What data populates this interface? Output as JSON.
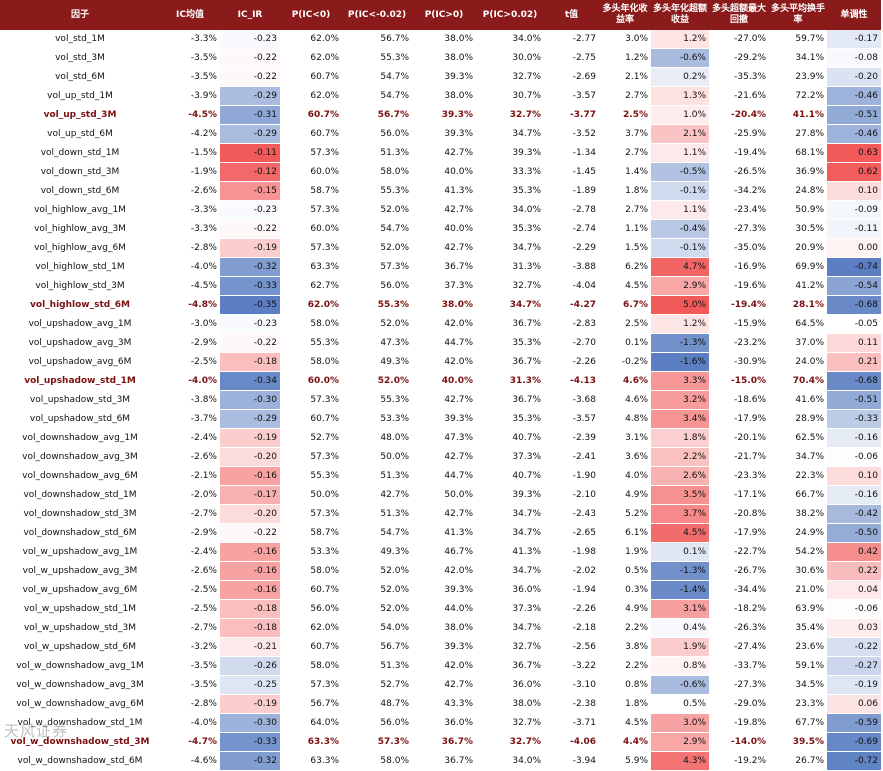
{
  "header": [
    "因子",
    "IC均值",
    "IC_IR",
    "P(IC<0)",
    "P(IC<-0.02)",
    "P(IC>0)",
    "P(IC>0.02)",
    "t值",
    "多头年化收益率",
    "多头年化超额收益",
    "多头超额最大回撤",
    "多头平均换手率",
    "单调性"
  ],
  "watermark": "天风证券",
  "colors": {
    "header_bg": "#8b1a1a",
    "highlight_text": "#7a1010",
    "neg": "#5b7fc2",
    "pos": "#f25a5a"
  },
  "rows": [
    {
      "name": "vol_std_1M",
      "ic": "-3.3%",
      "ir": "-0.23",
      "p1": "62.0%",
      "p2": "56.7%",
      "p3": "38.0%",
      "p4": "34.0%",
      "t": "-2.77",
      "ann": "3.0%",
      "ex": "1.2%",
      "mdd": "-27.0%",
      "turn": "59.7%",
      "mono": "-0.17",
      "hl": false
    },
    {
      "name": "vol_std_3M",
      "ic": "-3.5%",
      "ir": "-0.22",
      "p1": "62.0%",
      "p2": "55.3%",
      "p3": "38.0%",
      "p4": "30.0%",
      "t": "-2.75",
      "ann": "1.2%",
      "ex": "-0.6%",
      "mdd": "-29.2%",
      "turn": "34.1%",
      "mono": "-0.08",
      "hl": false
    },
    {
      "name": "vol_std_6M",
      "ic": "-3.5%",
      "ir": "-0.22",
      "p1": "60.7%",
      "p2": "54.7%",
      "p3": "39.3%",
      "p4": "32.7%",
      "t": "-2.69",
      "ann": "2.1%",
      "ex": "0.2%",
      "mdd": "-35.3%",
      "turn": "23.9%",
      "mono": "-0.20",
      "hl": false
    },
    {
      "name": "vol_up_std_1M",
      "ic": "-3.9%",
      "ir": "-0.29",
      "p1": "62.0%",
      "p2": "54.7%",
      "p3": "38.0%",
      "p4": "30.7%",
      "t": "-3.57",
      "ann": "2.7%",
      "ex": "1.3%",
      "mdd": "-21.6%",
      "turn": "72.2%",
      "mono": "-0.46",
      "hl": false
    },
    {
      "name": "vol_up_std_3M",
      "ic": "-4.5%",
      "ir": "-0.31",
      "p1": "60.7%",
      "p2": "56.7%",
      "p3": "39.3%",
      "p4": "32.7%",
      "t": "-3.77",
      "ann": "2.5%",
      "ex": "1.0%",
      "mdd": "-20.4%",
      "turn": "41.1%",
      "mono": "-0.51",
      "hl": true
    },
    {
      "name": "vol_up_std_6M",
      "ic": "-4.2%",
      "ir": "-0.29",
      "p1": "60.7%",
      "p2": "56.0%",
      "p3": "39.3%",
      "p4": "34.7%",
      "t": "-3.52",
      "ann": "3.7%",
      "ex": "2.1%",
      "mdd": "-25.9%",
      "turn": "27.8%",
      "mono": "-0.46",
      "hl": false
    },
    {
      "name": "vol_down_std_1M",
      "ic": "-1.5%",
      "ir": "-0.11",
      "p1": "57.3%",
      "p2": "51.3%",
      "p3": "42.7%",
      "p4": "39.3%",
      "t": "-1.34",
      "ann": "2.7%",
      "ex": "1.1%",
      "mdd": "-19.4%",
      "turn": "68.1%",
      "mono": "0.63",
      "hl": false
    },
    {
      "name": "vol_down_std_3M",
      "ic": "-1.9%",
      "ir": "-0.12",
      "p1": "60.0%",
      "p2": "58.0%",
      "p3": "40.0%",
      "p4": "33.3%",
      "t": "-1.45",
      "ann": "1.4%",
      "ex": "-0.5%",
      "mdd": "-26.5%",
      "turn": "36.9%",
      "mono": "0.62",
      "hl": false
    },
    {
      "name": "vol_down_std_6M",
      "ic": "-2.6%",
      "ir": "-0.15",
      "p1": "58.7%",
      "p2": "55.3%",
      "p3": "41.3%",
      "p4": "35.3%",
      "t": "-1.89",
      "ann": "1.8%",
      "ex": "-0.1%",
      "mdd": "-34.2%",
      "turn": "24.8%",
      "mono": "0.10",
      "hl": false
    },
    {
      "name": "vol_highlow_avg_1M",
      "ic": "-3.3%",
      "ir": "-0.23",
      "p1": "57.3%",
      "p2": "52.0%",
      "p3": "42.7%",
      "p4": "34.0%",
      "t": "-2.78",
      "ann": "2.7%",
      "ex": "1.1%",
      "mdd": "-23.4%",
      "turn": "50.9%",
      "mono": "-0.09",
      "hl": false
    },
    {
      "name": "vol_highlow_avg_3M",
      "ic": "-3.3%",
      "ir": "-0.22",
      "p1": "60.0%",
      "p2": "54.7%",
      "p3": "40.0%",
      "p4": "35.3%",
      "t": "-2.74",
      "ann": "1.1%",
      "ex": "-0.4%",
      "mdd": "-27.3%",
      "turn": "30.5%",
      "mono": "-0.11",
      "hl": false
    },
    {
      "name": "vol_highlow_avg_6M",
      "ic": "-2.8%",
      "ir": "-0.19",
      "p1": "57.3%",
      "p2": "52.0%",
      "p3": "42.7%",
      "p4": "34.7%",
      "t": "-2.29",
      "ann": "1.5%",
      "ex": "-0.1%",
      "mdd": "-35.0%",
      "turn": "20.9%",
      "mono": "0.00",
      "hl": false
    },
    {
      "name": "vol_highlow_std_1M",
      "ic": "-4.0%",
      "ir": "-0.32",
      "p1": "63.3%",
      "p2": "57.3%",
      "p3": "36.7%",
      "p4": "31.3%",
      "t": "-3.88",
      "ann": "6.2%",
      "ex": "4.7%",
      "mdd": "-16.9%",
      "turn": "69.9%",
      "mono": "-0.74",
      "hl": false
    },
    {
      "name": "vol_highlow_std_3M",
      "ic": "-4.5%",
      "ir": "-0.33",
      "p1": "62.7%",
      "p2": "56.0%",
      "p3": "37.3%",
      "p4": "32.7%",
      "t": "-4.04",
      "ann": "4.5%",
      "ex": "2.9%",
      "mdd": "-19.6%",
      "turn": "41.2%",
      "mono": "-0.54",
      "hl": false
    },
    {
      "name": "vol_highlow_std_6M",
      "ic": "-4.8%",
      "ir": "-0.35",
      "p1": "62.0%",
      "p2": "55.3%",
      "p3": "38.0%",
      "p4": "34.7%",
      "t": "-4.27",
      "ann": "6.7%",
      "ex": "5.0%",
      "mdd": "-19.4%",
      "turn": "28.1%",
      "mono": "-0.68",
      "hl": true
    },
    {
      "name": "vol_upshadow_avg_1M",
      "ic": "-3.0%",
      "ir": "-0.23",
      "p1": "58.0%",
      "p2": "52.0%",
      "p3": "42.0%",
      "p4": "36.7%",
      "t": "-2.83",
      "ann": "2.5%",
      "ex": "1.2%",
      "mdd": "-15.9%",
      "turn": "64.5%",
      "mono": "-0.05",
      "hl": false
    },
    {
      "name": "vol_upshadow_avg_3M",
      "ic": "-2.9%",
      "ir": "-0.22",
      "p1": "55.3%",
      "p2": "47.3%",
      "p3": "44.7%",
      "p4": "35.3%",
      "t": "-2.70",
      "ann": "0.1%",
      "ex": "-1.3%",
      "mdd": "-23.2%",
      "turn": "37.0%",
      "mono": "0.11",
      "hl": false
    },
    {
      "name": "vol_upshadow_avg_6M",
      "ic": "-2.5%",
      "ir": "-0.18",
      "p1": "58.0%",
      "p2": "49.3%",
      "p3": "42.0%",
      "p4": "36.7%",
      "t": "-2.26",
      "ann": "-0.2%",
      "ex": "-1.6%",
      "mdd": "-30.9%",
      "turn": "24.0%",
      "mono": "0.21",
      "hl": false
    },
    {
      "name": "vol_upshadow_std_1M",
      "ic": "-4.0%",
      "ir": "-0.34",
      "p1": "60.0%",
      "p2": "52.0%",
      "p3": "40.0%",
      "p4": "31.3%",
      "t": "-4.13",
      "ann": "4.6%",
      "ex": "3.3%",
      "mdd": "-15.0%",
      "turn": "70.4%",
      "mono": "-0.68",
      "hl": true
    },
    {
      "name": "vol_upshadow_std_3M",
      "ic": "-3.8%",
      "ir": "-0.30",
      "p1": "57.3%",
      "p2": "55.3%",
      "p3": "42.7%",
      "p4": "36.7%",
      "t": "-3.68",
      "ann": "4.6%",
      "ex": "3.2%",
      "mdd": "-18.6%",
      "turn": "41.6%",
      "mono": "-0.51",
      "hl": false
    },
    {
      "name": "vol_upshadow_std_6M",
      "ic": "-3.7%",
      "ir": "-0.29",
      "p1": "60.7%",
      "p2": "53.3%",
      "p3": "39.3%",
      "p4": "35.3%",
      "t": "-3.57",
      "ann": "4.8%",
      "ex": "3.4%",
      "mdd": "-17.9%",
      "turn": "28.9%",
      "mono": "-0.33",
      "hl": false
    },
    {
      "name": "vol_downshadow_avg_1M",
      "ic": "-2.4%",
      "ir": "-0.19",
      "p1": "52.7%",
      "p2": "48.0%",
      "p3": "47.3%",
      "p4": "40.7%",
      "t": "-2.39",
      "ann": "3.1%",
      "ex": "1.8%",
      "mdd": "-20.1%",
      "turn": "62.5%",
      "mono": "-0.16",
      "hl": false
    },
    {
      "name": "vol_downshadow_avg_3M",
      "ic": "-2.6%",
      "ir": "-0.20",
      "p1": "57.3%",
      "p2": "50.0%",
      "p3": "42.7%",
      "p4": "37.3%",
      "t": "-2.41",
      "ann": "3.6%",
      "ex": "2.2%",
      "mdd": "-21.7%",
      "turn": "34.7%",
      "mono": "-0.06",
      "hl": false
    },
    {
      "name": "vol_downshadow_avg_6M",
      "ic": "-2.1%",
      "ir": "-0.16",
      "p1": "55.3%",
      "p2": "51.3%",
      "p3": "44.7%",
      "p4": "40.7%",
      "t": "-1.90",
      "ann": "4.0%",
      "ex": "2.6%",
      "mdd": "-23.3%",
      "turn": "22.3%",
      "mono": "0.10",
      "hl": false
    },
    {
      "name": "vol_downshadow_std_1M",
      "ic": "-2.0%",
      "ir": "-0.17",
      "p1": "50.0%",
      "p2": "42.7%",
      "p3": "50.0%",
      "p4": "39.3%",
      "t": "-2.10",
      "ann": "4.9%",
      "ex": "3.5%",
      "mdd": "-17.1%",
      "turn": "66.7%",
      "mono": "-0.16",
      "hl": false
    },
    {
      "name": "vol_downshadow_std_3M",
      "ic": "-2.7%",
      "ir": "-0.20",
      "p1": "57.3%",
      "p2": "51.3%",
      "p3": "42.7%",
      "p4": "34.7%",
      "t": "-2.43",
      "ann": "5.2%",
      "ex": "3.7%",
      "mdd": "-20.8%",
      "turn": "38.2%",
      "mono": "-0.42",
      "hl": false
    },
    {
      "name": "vol_downshadow_std_6M",
      "ic": "-2.9%",
      "ir": "-0.22",
      "p1": "58.7%",
      "p2": "54.7%",
      "p3": "41.3%",
      "p4": "34.7%",
      "t": "-2.65",
      "ann": "6.1%",
      "ex": "4.5%",
      "mdd": "-17.9%",
      "turn": "24.9%",
      "mono": "-0.50",
      "hl": false
    },
    {
      "name": "vol_w_upshadow_avg_1M",
      "ic": "-2.4%",
      "ir": "-0.16",
      "p1": "53.3%",
      "p2": "49.3%",
      "p3": "46.7%",
      "p4": "41.3%",
      "t": "-1.98",
      "ann": "1.9%",
      "ex": "0.1%",
      "mdd": "-22.7%",
      "turn": "54.2%",
      "mono": "0.42",
      "hl": false
    },
    {
      "name": "vol_w_upshadow_avg_3M",
      "ic": "-2.6%",
      "ir": "-0.16",
      "p1": "58.0%",
      "p2": "52.0%",
      "p3": "42.0%",
      "p4": "34.7%",
      "t": "-2.02",
      "ann": "0.5%",
      "ex": "-1.3%",
      "mdd": "-26.7%",
      "turn": "30.6%",
      "mono": "0.22",
      "hl": false
    },
    {
      "name": "vol_w_upshadow_avg_6M",
      "ic": "-2.5%",
      "ir": "-0.16",
      "p1": "60.7%",
      "p2": "52.0%",
      "p3": "39.3%",
      "p4": "36.0%",
      "t": "-1.94",
      "ann": "0.3%",
      "ex": "-1.4%",
      "mdd": "-34.4%",
      "turn": "21.0%",
      "mono": "0.04",
      "hl": false
    },
    {
      "name": "vol_w_upshadow_std_1M",
      "ic": "-2.5%",
      "ir": "-0.18",
      "p1": "56.0%",
      "p2": "52.0%",
      "p3": "44.0%",
      "p4": "37.3%",
      "t": "-2.26",
      "ann": "4.9%",
      "ex": "3.1%",
      "mdd": "-18.2%",
      "turn": "63.9%",
      "mono": "-0.06",
      "hl": false
    },
    {
      "name": "vol_w_upshadow_std_3M",
      "ic": "-2.7%",
      "ir": "-0.18",
      "p1": "62.0%",
      "p2": "54.0%",
      "p3": "38.0%",
      "p4": "34.7%",
      "t": "-2.18",
      "ann": "2.2%",
      "ex": "0.4%",
      "mdd": "-26.3%",
      "turn": "35.4%",
      "mono": "0.03",
      "hl": false
    },
    {
      "name": "vol_w_upshadow_std_6M",
      "ic": "-3.2%",
      "ir": "-0.21",
      "p1": "60.7%",
      "p2": "56.7%",
      "p3": "39.3%",
      "p4": "32.7%",
      "t": "-2.56",
      "ann": "3.8%",
      "ex": "1.9%",
      "mdd": "-27.4%",
      "turn": "23.6%",
      "mono": "-0.22",
      "hl": false
    },
    {
      "name": "vol_w_downshadow_avg_1M",
      "ic": "-3.5%",
      "ir": "-0.26",
      "p1": "58.0%",
      "p2": "51.3%",
      "p3": "42.0%",
      "p4": "36.7%",
      "t": "-3.22",
      "ann": "2.2%",
      "ex": "0.8%",
      "mdd": "-33.7%",
      "turn": "59.1%",
      "mono": "-0.27",
      "hl": false
    },
    {
      "name": "vol_w_downshadow_avg_3M",
      "ic": "-3.5%",
      "ir": "-0.25",
      "p1": "57.3%",
      "p2": "52.7%",
      "p3": "42.7%",
      "p4": "36.0%",
      "t": "-3.10",
      "ann": "0.8%",
      "ex": "-0.6%",
      "mdd": "-27.3%",
      "turn": "34.5%",
      "mono": "-0.19",
      "hl": false
    },
    {
      "name": "vol_w_downshadow_avg_6M",
      "ic": "-2.8%",
      "ir": "-0.19",
      "p1": "56.7%",
      "p2": "48.7%",
      "p3": "43.3%",
      "p4": "38.0%",
      "t": "-2.38",
      "ann": "1.8%",
      "ex": "0.5%",
      "mdd": "-29.0%",
      "turn": "23.3%",
      "mono": "0.06",
      "hl": false
    },
    {
      "name": "vol_w_downshadow_std_1M",
      "ic": "-4.0%",
      "ir": "-0.30",
      "p1": "64.0%",
      "p2": "56.0%",
      "p3": "36.0%",
      "p4": "32.7%",
      "t": "-3.71",
      "ann": "4.5%",
      "ex": "3.0%",
      "mdd": "-19.8%",
      "turn": "67.7%",
      "mono": "-0.59",
      "hl": false
    },
    {
      "name": "vol_w_downshadow_std_3M",
      "ic": "-4.7%",
      "ir": "-0.33",
      "p1": "63.3%",
      "p2": "57.3%",
      "p3": "36.7%",
      "p4": "32.7%",
      "t": "-4.06",
      "ann": "4.4%",
      "ex": "2.9%",
      "mdd": "-14.0%",
      "turn": "39.5%",
      "mono": "-0.69",
      "hl": true
    },
    {
      "name": "vol_w_downshadow_std_6M",
      "ic": "-4.6%",
      "ir": "-0.32",
      "p1": "63.3%",
      "p2": "58.0%",
      "p3": "36.7%",
      "p4": "34.0%",
      "t": "-3.94",
      "ann": "5.9%",
      "ex": "4.3%",
      "mdd": "-19.2%",
      "turn": "26.7%",
      "mono": "-0.72",
      "hl": false
    }
  ]
}
